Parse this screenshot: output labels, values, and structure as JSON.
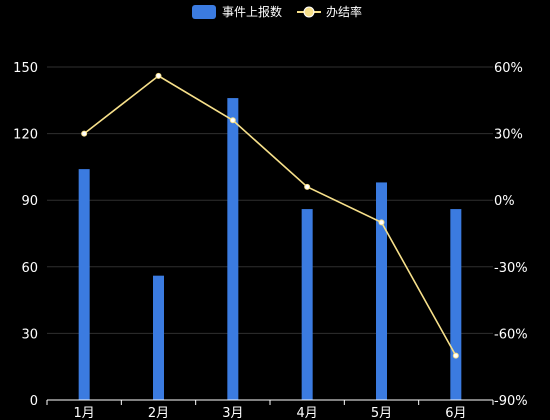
{
  "chart_data": {
    "type": "bar",
    "categories": [
      "1月",
      "2月",
      "3月",
      "4月",
      "5月",
      "6月"
    ],
    "series": [
      {
        "name": "事件上报数",
        "type": "bar",
        "axis": "left",
        "color": "#3b7be0",
        "values": [
          104,
          56,
          136,
          86,
          98,
          86
        ]
      },
      {
        "name": "办结率",
        "type": "line",
        "axis": "right",
        "color": "#f7e08a",
        "values": [
          30,
          56,
          36,
          6,
          -10,
          -70
        ]
      }
    ],
    "left_axis": {
      "ticks": [
        "0",
        "30",
        "60",
        "90",
        "120",
        "150"
      ],
      "min": 0,
      "max": 150
    },
    "right_axis": {
      "ticks": [
        "-90%",
        "-60%",
        "-30%",
        "0%",
        "30%",
        "60%"
      ],
      "min": -90,
      "max": 60
    },
    "grid": true,
    "legend": "top-center",
    "background": "#000000"
  }
}
